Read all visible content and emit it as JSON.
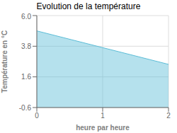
{
  "chart_data": {
    "type": "area",
    "title": "Evolution de la température",
    "xlabel": "heure par heure",
    "ylabel": "Température en °C",
    "x": [
      0,
      2
    ],
    "values": [
      4.9,
      2.5
    ],
    "color": "#5bbcd6",
    "xlim": [
      0,
      2
    ],
    "ylim": [
      -0.6,
      6
    ],
    "xticks": [
      0,
      1,
      2
    ],
    "yticks": [
      -0.6,
      1.6,
      3.8,
      {
        "value": 6,
        "label": "6.0"
      }
    ],
    "grid": true
  }
}
